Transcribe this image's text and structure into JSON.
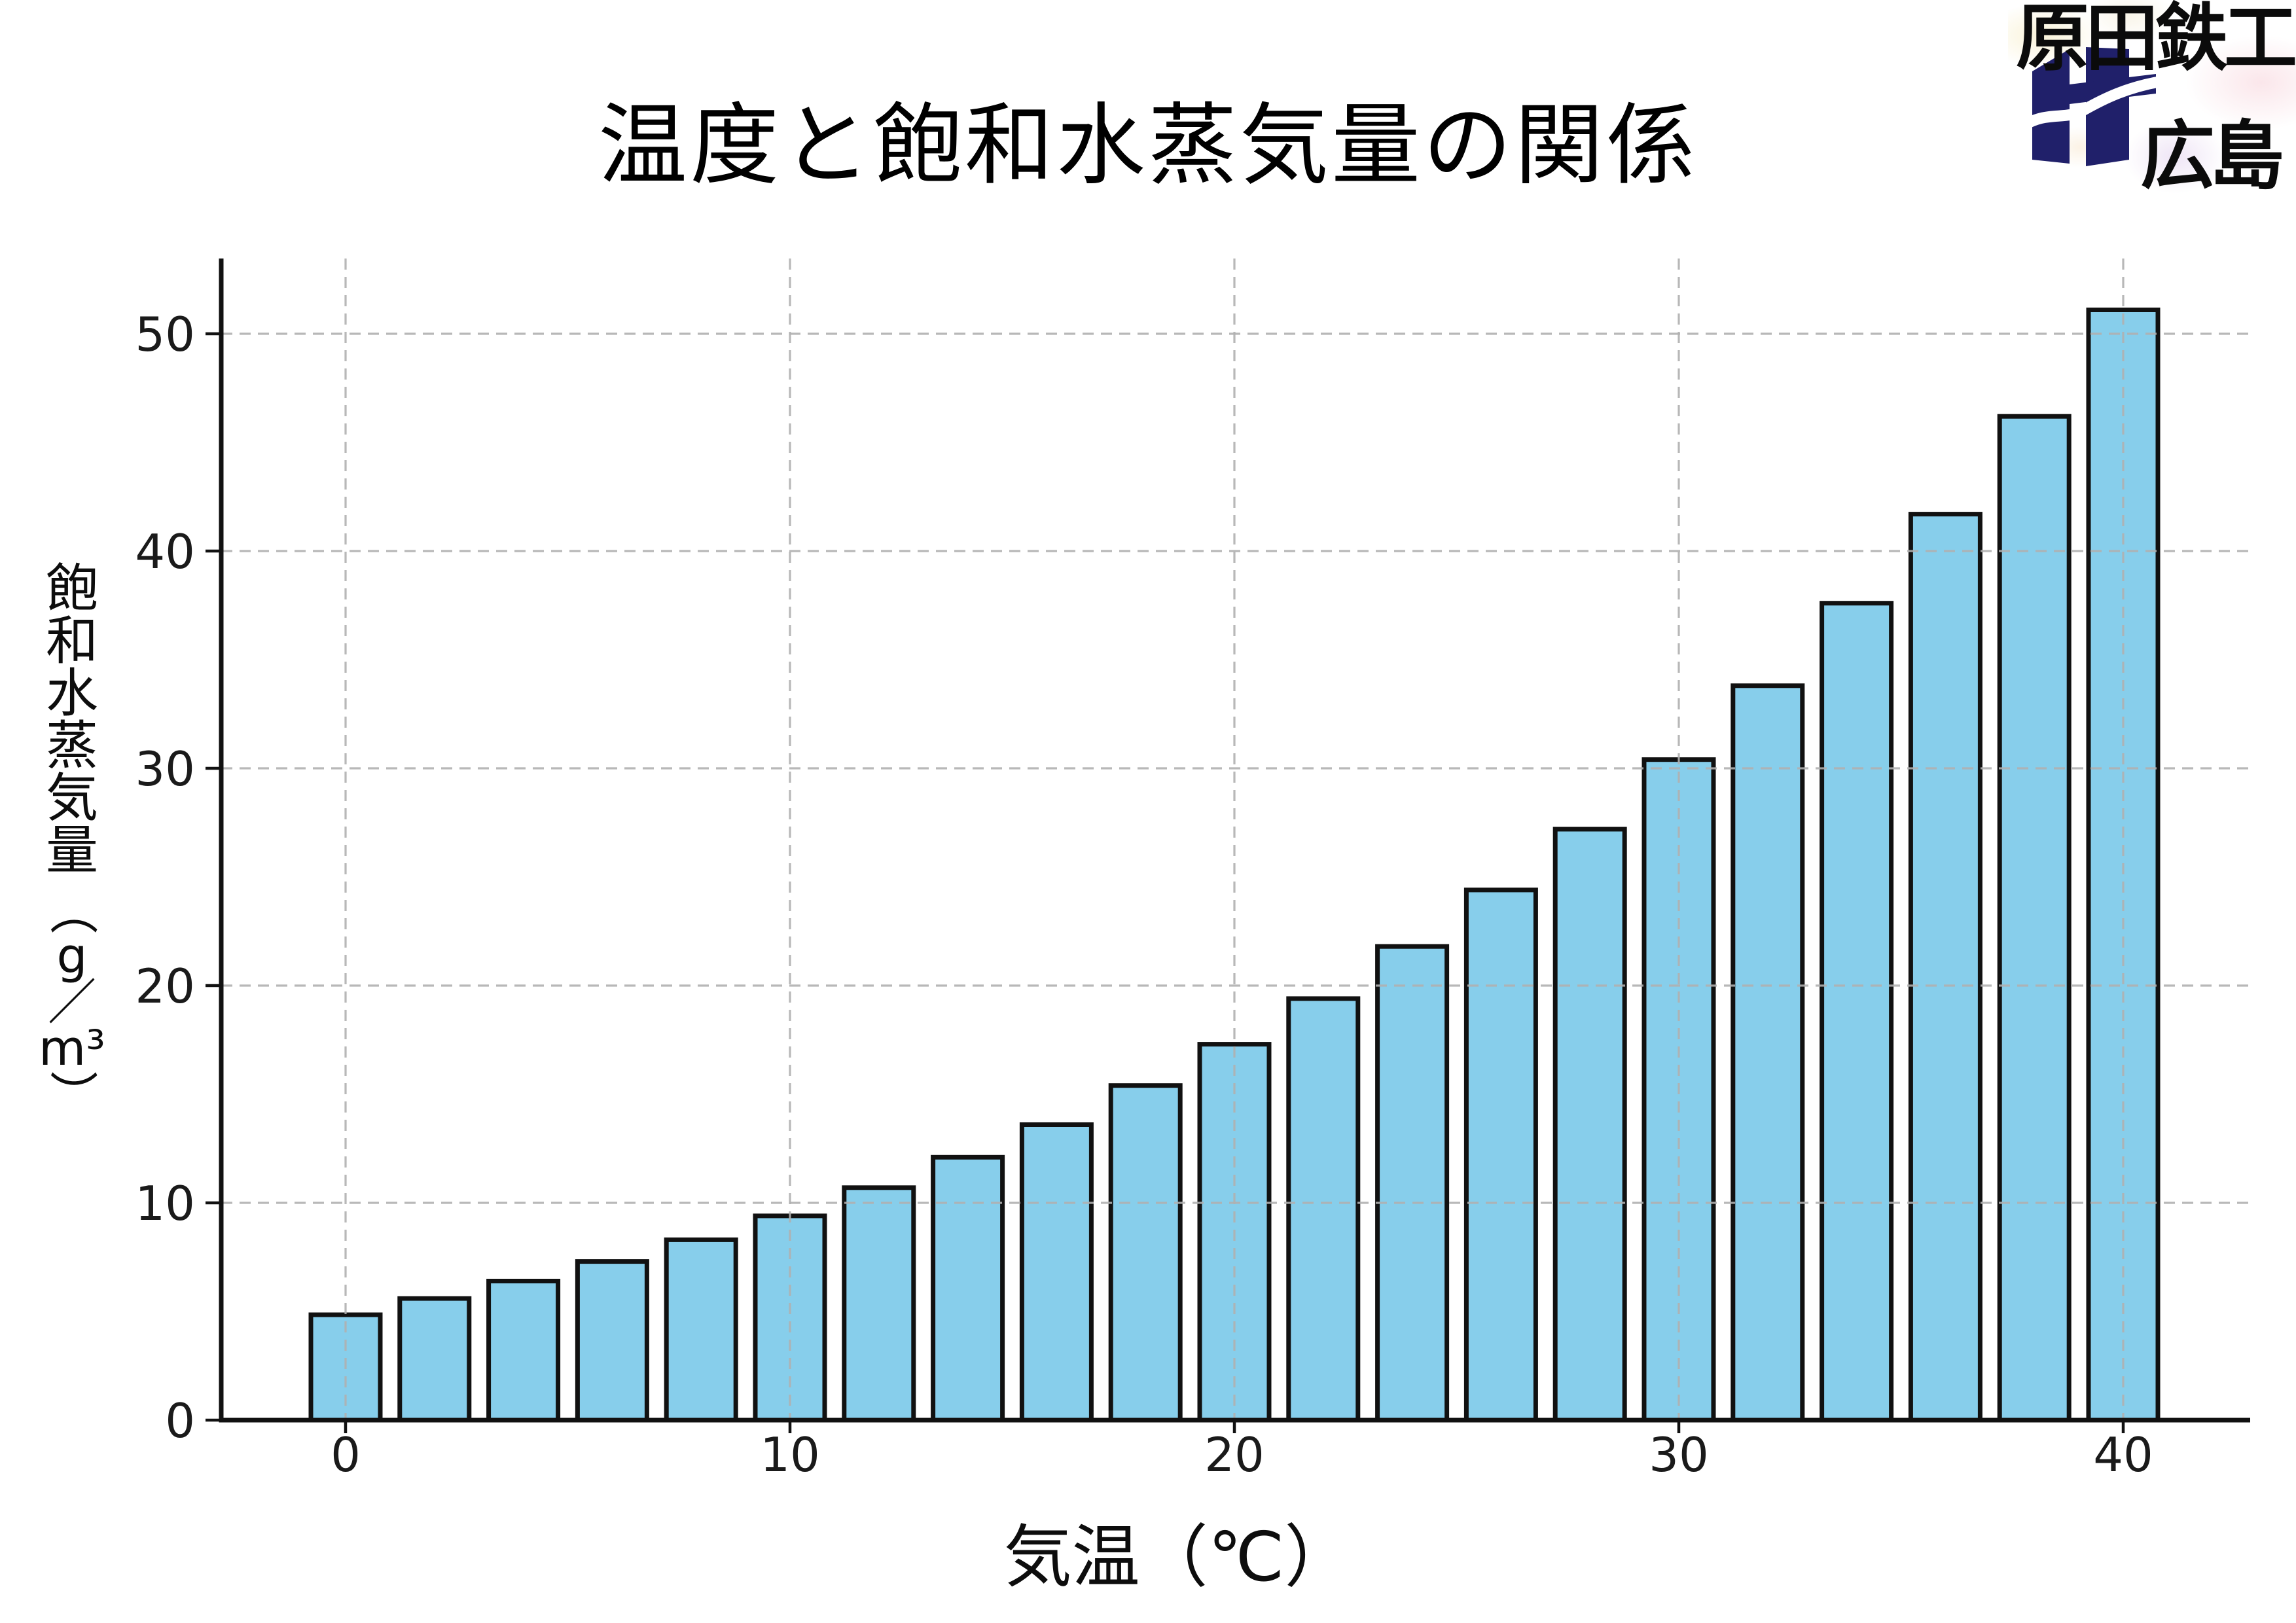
{
  "header": {
    "title": "温度と飽和水蒸気量の関係"
  },
  "logo": {
    "company": "原田鉄工",
    "city": "広島",
    "mark_color": "#20206a",
    "text_color": "#0b0b0b"
  },
  "chart_data": {
    "type": "bar",
    "title": "温度と飽和水蒸気量の関係",
    "xlabel": "気温（℃）",
    "ylabel": "飽和水蒸気量（g／m³）",
    "ylabel_vertical_kanji": "飽和水蒸気量",
    "ylabel_unit": "（g／m³）",
    "categories": [
      0,
      2,
      4,
      6,
      8,
      10,
      12,
      14,
      16,
      18,
      20,
      22,
      24,
      26,
      28,
      30,
      32,
      34,
      36,
      38,
      40
    ],
    "values": [
      4.85,
      5.6,
      6.4,
      7.3,
      8.3,
      9.4,
      10.7,
      12.1,
      13.6,
      15.4,
      17.3,
      19.4,
      21.8,
      24.4,
      27.2,
      30.4,
      33.8,
      37.6,
      41.7,
      46.2,
      51.1
    ],
    "x_ticks": [
      0,
      10,
      20,
      30,
      40
    ],
    "y_ticks": [
      0,
      10,
      20,
      30,
      40,
      50
    ],
    "xlim": [
      -2.8,
      42.9
    ],
    "ylim": [
      0,
      53.5
    ],
    "grid": true,
    "grid_style": "dashed",
    "legend": "none",
    "bar_color": "#87CEEB",
    "bar_edge_color": "#111111",
    "grid_color": "#b0b0b0",
    "axis_color": "#111111",
    "tick_label_color": "#1a1a1a"
  }
}
